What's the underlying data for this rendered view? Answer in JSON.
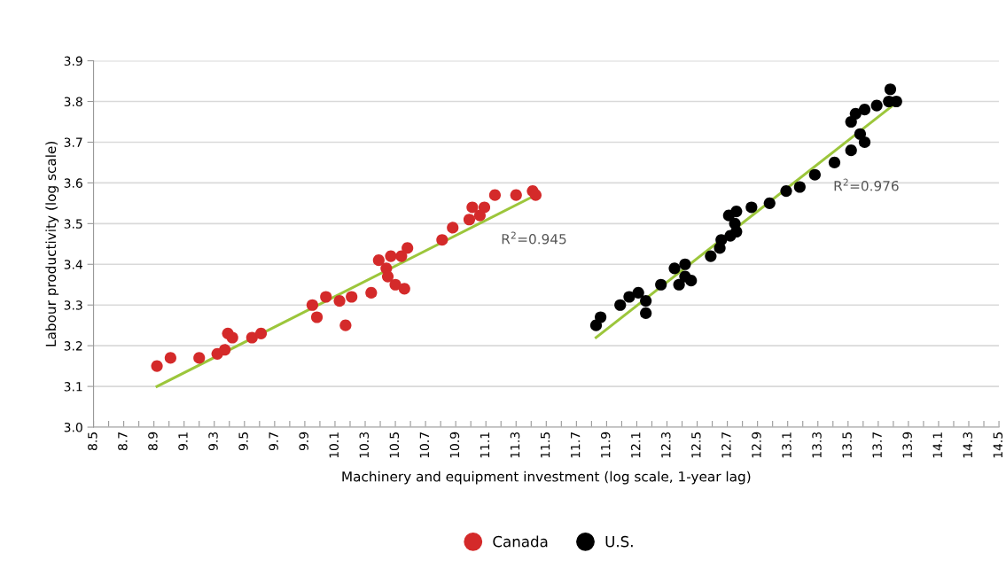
{
  "chart_data": {
    "type": "scatter",
    "xlabel": "Machinery and equipment investment (log scale, 1-year lag)",
    "ylabel": "Labour productivity (log scale)",
    "xlim": [
      8.5,
      14.5
    ],
    "ylim": [
      3.0,
      3.9
    ],
    "xticks": [
      {
        "value": 8.5,
        "label": "8.5"
      },
      {
        "value": 8.6,
        "label": null
      },
      {
        "value": 8.7,
        "label": "8.7"
      },
      {
        "value": 8.8,
        "label": null
      },
      {
        "value": 8.9,
        "label": "8.9"
      },
      {
        "value": 9.0,
        "label": null
      },
      {
        "value": 9.1,
        "label": "9.1"
      },
      {
        "value": 9.2,
        "label": null
      },
      {
        "value": 9.3,
        "label": "9.3"
      },
      {
        "value": 9.4,
        "label": null
      },
      {
        "value": 9.5,
        "label": "9.5"
      },
      {
        "value": 9.6,
        "label": null
      },
      {
        "value": 9.7,
        "label": "9.7"
      },
      {
        "value": 9.8,
        "label": null
      },
      {
        "value": 9.9,
        "label": "9.9"
      },
      {
        "value": 10.0,
        "label": null
      },
      {
        "value": 10.1,
        "label": "10.1"
      },
      {
        "value": 10.2,
        "label": null
      },
      {
        "value": 10.3,
        "label": "10.3"
      },
      {
        "value": 10.4,
        "label": null
      },
      {
        "value": 10.5,
        "label": "10.5"
      },
      {
        "value": 10.6,
        "label": null
      },
      {
        "value": 10.7,
        "label": "10.7"
      },
      {
        "value": 10.8,
        "label": null
      },
      {
        "value": 10.9,
        "label": "10.9"
      },
      {
        "value": 11.0,
        "label": null
      },
      {
        "value": 11.1,
        "label": "11.1"
      },
      {
        "value": 11.2,
        "label": null
      },
      {
        "value": 11.3,
        "label": "11.3"
      },
      {
        "value": 11.4,
        "label": null
      },
      {
        "value": 11.5,
        "label": "11.5"
      },
      {
        "value": 11.6,
        "label": null
      },
      {
        "value": 11.7,
        "label": "11.7"
      },
      {
        "value": 11.8,
        "label": null
      },
      {
        "value": 11.9,
        "label": "11.9"
      },
      {
        "value": 12.0,
        "label": null
      },
      {
        "value": 12.1,
        "label": "12.1"
      },
      {
        "value": 12.2,
        "label": null
      },
      {
        "value": 12.3,
        "label": "12.3"
      },
      {
        "value": 12.4,
        "label": null
      },
      {
        "value": 12.5,
        "label": "12.5"
      },
      {
        "value": 12.6,
        "label": null
      },
      {
        "value": 12.7,
        "label": "12.7"
      },
      {
        "value": 12.8,
        "label": null
      },
      {
        "value": 12.9,
        "label": "12.9"
      },
      {
        "value": 13.0,
        "label": null
      },
      {
        "value": 13.1,
        "label": "13.1"
      },
      {
        "value": 13.2,
        "label": null
      },
      {
        "value": 13.3,
        "label": "13.3"
      },
      {
        "value": 13.4,
        "label": null
      },
      {
        "value": 13.5,
        "label": "13.5"
      },
      {
        "value": 13.6,
        "label": null
      },
      {
        "value": 13.7,
        "label": "13.7"
      },
      {
        "value": 13.8,
        "label": null
      },
      {
        "value": 13.9,
        "label": "13.9"
      },
      {
        "value": 14.0,
        "label": null
      },
      {
        "value": 14.1,
        "label": "14.1"
      },
      {
        "value": 14.2,
        "label": null
      },
      {
        "value": 14.3,
        "label": "14.3"
      },
      {
        "value": 14.4,
        "label": null
      },
      {
        "value": 14.5,
        "label": "14.5"
      }
    ],
    "yticks": [
      {
        "value": 3.0,
        "label": "3.0"
      },
      {
        "value": 3.1,
        "label": "3.1"
      },
      {
        "value": 3.2,
        "label": "3.2"
      },
      {
        "value": 3.3,
        "label": "3.3"
      },
      {
        "value": 3.4,
        "label": "3.4"
      },
      {
        "value": 3.5,
        "label": "3.5"
      },
      {
        "value": 3.6,
        "label": "3.6"
      },
      {
        "value": 3.7,
        "label": "3.7"
      },
      {
        "value": 3.8,
        "label": "3.8"
      },
      {
        "value": 3.9,
        "label": "3.9"
      }
    ],
    "grid": "y",
    "legend": "bottom",
    "series": [
      {
        "name": "Canada",
        "color": "#d42a2a",
        "marker": "circle",
        "x": [
          8.92,
          9.01,
          9.2,
          9.32,
          9.37,
          9.39,
          9.42,
          9.55,
          9.61,
          9.95,
          9.98,
          10.04,
          10.13,
          10.17,
          10.21,
          10.34,
          10.39,
          10.44,
          10.45,
          10.47,
          10.5,
          10.56,
          10.54,
          10.58,
          10.81,
          10.88,
          10.99,
          11.01,
          11.09,
          11.06,
          11.16,
          11.3,
          11.41,
          11.43
        ],
        "values": [
          3.15,
          3.17,
          3.17,
          3.18,
          3.19,
          3.23,
          3.22,
          3.22,
          3.23,
          3.3,
          3.27,
          3.32,
          3.31,
          3.25,
          3.32,
          3.33,
          3.41,
          3.39,
          3.37,
          3.42,
          3.35,
          3.34,
          3.42,
          3.44,
          3.46,
          3.49,
          3.51,
          3.54,
          3.54,
          3.52,
          3.57,
          3.57,
          3.58,
          3.57
        ]
      },
      {
        "name": "U.S.",
        "color": "#000000",
        "marker": "circle",
        "x": [
          11.83,
          11.86,
          11.99,
          12.05,
          12.11,
          12.16,
          12.16,
          12.26,
          12.35,
          12.42,
          12.38,
          12.42,
          12.46,
          12.59,
          12.65,
          12.66,
          12.72,
          12.75,
          12.76,
          12.71,
          12.76,
          12.86,
          12.98,
          13.09,
          13.18,
          13.28,
          13.41,
          13.52,
          13.61,
          13.58,
          13.52,
          13.55,
          13.61,
          13.69,
          13.78,
          13.77,
          13.82
        ],
        "values": [
          3.25,
          3.27,
          3.3,
          3.32,
          3.33,
          3.31,
          3.28,
          3.35,
          3.39,
          3.4,
          3.35,
          3.37,
          3.36,
          3.42,
          3.44,
          3.46,
          3.47,
          3.5,
          3.48,
          3.52,
          3.53,
          3.54,
          3.55,
          3.58,
          3.59,
          3.62,
          3.65,
          3.68,
          3.7,
          3.72,
          3.75,
          3.77,
          3.78,
          3.79,
          3.83,
          3.8,
          3.8
        ]
      },
      {
        "type": "line",
        "color": "#9cc63b",
        "x": [
          8.92,
          11.43
        ],
        "values": [
          3.1,
          3.57
        ]
      },
      {
        "type": "line",
        "color": "#9cc63b",
        "x": [
          11.83,
          13.83
        ],
        "values": [
          3.22,
          3.8
        ]
      }
    ],
    "annotations": [
      "R$^{2}$=0.945",
      "R$^{2}$=0.976"
    ]
  }
}
